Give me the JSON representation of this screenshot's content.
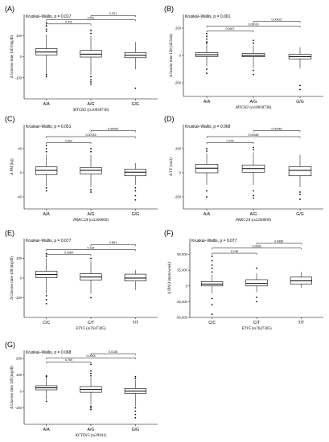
{
  "chart_data": [
    {
      "panel": "(A)",
      "type": "box",
      "test": "Kruskal–Wallis, p = 0.017",
      "ylabel": "Δ Glucose time 120 (mg/dl)",
      "gene": "MTCH2",
      "snp": " (rs10838738)",
      "categories": [
        "A/A",
        "A/G",
        "G/G"
      ],
      "ylim": [
        -200,
        200
      ],
      "yticks": [
        -100,
        0,
        100
      ],
      "boxes": [
        {
          "min": -80,
          "q1": 8,
          "med": 22,
          "q3": 38,
          "max": 105,
          "outliers": [
            120,
            130,
            145,
            160,
            -85,
            -95
          ]
        },
        {
          "min": -85,
          "q1": -2,
          "med": 12,
          "q3": 30,
          "max": 98,
          "outliers": [
            110,
            125,
            -95,
            -110,
            -120,
            -130
          ]
        },
        {
          "min": -60,
          "q1": -5,
          "med": 6,
          "q3": 20,
          "max": 70,
          "outliers": [
            -150
          ]
        }
      ],
      "comparisons": [
        {
          "a": 0,
          "b": 1,
          "p": "0.011",
          "y": 155
        },
        {
          "a": 0,
          "b": 2,
          "p": "0.011",
          "y": 175
        },
        {
          "a": 1,
          "b": 2,
          "p": "0.301",
          "y": 195
        }
      ]
    },
    {
      "panel": "(B)",
      "type": "box",
      "test": "Kruskal–Wallis, p = 0.001",
      "ylabel": "Δ Insulin time 120 (uUI/ml)",
      "gene": "MTCH2",
      "snp": " (rs10838738)",
      "categories": [
        "A/A",
        "A/G",
        "G/G"
      ],
      "ylim": [
        -300,
        300
      ],
      "yticks": [
        -200,
        0,
        200
      ],
      "boxes": [
        {
          "min": -80,
          "q1": -8,
          "med": 5,
          "q3": 20,
          "max": 80,
          "outliers": [
            90,
            100,
            120,
            140,
            160,
            -100,
            -130
          ]
        },
        {
          "min": -90,
          "q1": -10,
          "med": 0,
          "q3": 15,
          "max": 75,
          "outliers": [
            90,
            110,
            -110,
            -140
          ]
        },
        {
          "min": -95,
          "q1": -25,
          "med": -8,
          "q3": 8,
          "max": 60,
          "outliers": [
            -220,
            -250
          ]
        }
      ],
      "comparisons": [
        {
          "a": 0,
          "b": 1,
          "p": "0.0607",
          "y": 180
        },
        {
          "a": 0,
          "b": 2,
          "p": "0.00019",
          "y": 215
        },
        {
          "a": 1,
          "b": 2,
          "p": "0.00432",
          "y": 250
        }
      ]
    },
    {
      "panel": "(C)",
      "type": "box",
      "test": "Kruskal–Wallis, p = 0.051",
      "ylabel": "Δ FM (kg)",
      "gene": "PRKC2A",
      "snp": " (rs2260000)",
      "categories": [
        "A/A",
        "A/G",
        "G/G"
      ],
      "ylim": [
        -60,
        80
      ],
      "yticks": [
        -40,
        0,
        40
      ],
      "boxes": [
        {
          "min": -22,
          "q1": -3,
          "med": 4,
          "q3": 10,
          "max": 30,
          "outliers": [
            35,
            40,
            45,
            -25,
            -30
          ]
        },
        {
          "min": -24,
          "q1": -2,
          "med": 4,
          "q3": 9,
          "max": 30,
          "outliers": [
            35,
            40,
            -28,
            -32
          ]
        },
        {
          "min": -20,
          "q1": -5,
          "med": 1,
          "q3": 6,
          "max": 16,
          "outliers": [
            -25,
            -30,
            -38,
            -45
          ]
        }
      ],
      "comparisons": [
        {
          "a": 0,
          "b": 1,
          "p": "0.802",
          "y": 50
        },
        {
          "a": 0,
          "b": 2,
          "p": "0.00745",
          "y": 60
        },
        {
          "a": 1,
          "b": 2,
          "p": "0.00000",
          "y": 70
        }
      ]
    },
    {
      "panel": "(D)",
      "type": "box",
      "test": "Kruskal–Wallis, p = 0.068",
      "ylabel": "Δ VF (cm3)",
      "gene": "PRKC2A",
      "snp": " (rs2260000)",
      "categories": [
        "A/A",
        "A/G",
        "G/G"
      ],
      "ylim": [
        -300,
        400
      ],
      "yticks": [
        -200,
        0,
        200
      ],
      "boxes": [
        {
          "min": -100,
          "q1": 0,
          "med": 38,
          "q3": 70,
          "max": 160,
          "outliers": [
            180,
            200,
            -150,
            -200
          ]
        },
        {
          "min": -100,
          "q1": 5,
          "med": 35,
          "q3": 65,
          "max": 170,
          "outliers": [
            190,
            210,
            -150,
            -190,
            -210
          ]
        },
        {
          "min": -120,
          "q1": -25,
          "med": 20,
          "q3": 50,
          "max": 150,
          "outliers": [
            -160,
            -180,
            -220
          ]
        }
      ],
      "comparisons": [
        {
          "a": 0,
          "b": 1,
          "p": "0.978",
          "y": 250
        },
        {
          "a": 0,
          "b": 2,
          "p": "0.00346",
          "y": 300
        },
        {
          "a": 1,
          "b": 2,
          "p": "0.00346",
          "y": 350
        }
      ]
    },
    {
      "panel": "(E)",
      "type": "box",
      "test": "Kruskal–Wallis, p = 0.077",
      "ylabel": "Δ Glucose time 120 (mg/dl)",
      "gene": "ETV5",
      "snp": " (rs7647305)",
      "categories": [
        "C/C",
        "C/T",
        "T/T"
      ],
      "ylim": [
        -200,
        200
      ],
      "yticks": [
        -100,
        0,
        100
      ],
      "boxes": [
        {
          "min": -80,
          "q1": 2,
          "med": 18,
          "q3": 35,
          "max": 100,
          "outliers": [
            110,
            125,
            -90,
            -110,
            -130
          ]
        },
        {
          "min": -80,
          "q1": -10,
          "med": 5,
          "q3": 22,
          "max": 90,
          "outliers": [
            100,
            -100
          ]
        },
        {
          "min": -60,
          "q1": -15,
          "med": 0,
          "q3": 20,
          "max": 40,
          "outliers": []
        }
      ],
      "comparisons": [
        {
          "a": 0,
          "b": 1,
          "p": "0.0384",
          "y": 120
        },
        {
          "a": 0,
          "b": 2,
          "p": "0.182",
          "y": 145
        },
        {
          "a": 1,
          "b": 2,
          "p": "0.851",
          "y": 170
        }
      ]
    },
    {
      "panel": "(F)",
      "type": "box",
      "test": "Kruskal–Wallis, p = 0.077",
      "ylabel": "Δ IPAQ (mets/week)",
      "gene": "ETV5",
      "snp": " (rs7647305)",
      "categories": [
        "C/C",
        "C/T",
        "T/T"
      ],
      "ylim": [
        -50000,
        75000
      ],
      "yticks": [
        -50000,
        -25000,
        0,
        25000,
        50000
      ],
      "ytick_labels": [
        "-50,000",
        "-25,000",
        "0",
        "25,000",
        "50,000"
      ],
      "boxes": [
        {
          "min": -12000,
          "q1": 0,
          "med": 3000,
          "q3": 7000,
          "max": 18000,
          "outliers": [
            22000,
            28000,
            33000,
            40000,
            47000,
            -20000,
            -30000,
            -45000
          ]
        },
        {
          "min": -10000,
          "q1": 0,
          "med": 4000,
          "q3": 10000,
          "max": 20000,
          "outliers": [
            28000,
            -18000,
            -25000
          ]
        },
        {
          "min": -3000,
          "q1": 3000,
          "med": 8000,
          "q3": 14000,
          "max": 22000,
          "outliers": []
        }
      ],
      "comparisons": [
        {
          "a": 0,
          "b": 1,
          "p": "0.148",
          "y": 52000
        },
        {
          "a": 0,
          "b": 2,
          "p": "0.0296",
          "y": 60000
        },
        {
          "a": 1,
          "b": 2,
          "p": "0.0885",
          "y": 68000
        }
      ]
    },
    {
      "panel": "(G)",
      "type": "box",
      "test": "Kruskal–Wallis, p = 0.068",
      "ylabel": "Δ Glucose time 120 (mg/dl)",
      "gene": "KCTD15",
      "snp": " (rs29941)",
      "categories": [
        "A/A",
        "A/G",
        "G/G"
      ],
      "ylim": [
        -200,
        250
      ],
      "yticks": [
        -100,
        0,
        100,
        200
      ],
      "boxes": [
        {
          "min": -50,
          "q1": 10,
          "med": 22,
          "q3": 35,
          "max": 85,
          "outliers": [
            90,
            95,
            -60
          ]
        },
        {
          "min": -80,
          "q1": -5,
          "med": 12,
          "q3": 30,
          "max": 85,
          "outliers": [
            95,
            110,
            125,
            165,
            -90,
            -100,
            -110
          ]
        },
        {
          "min": -90,
          "q1": -12,
          "med": 2,
          "q3": 18,
          "max": 70,
          "outliers": [
            80,
            90,
            -100,
            -120,
            -140,
            -160
          ]
        }
      ],
      "comparisons": [
        {
          "a": 0,
          "b": 1,
          "p": "0.769",
          "y": 180
        },
        {
          "a": 0,
          "b": 2,
          "p": "0.0918",
          "y": 205
        },
        {
          "a": 1,
          "b": 2,
          "p": "0.0136",
          "y": 230
        }
      ]
    }
  ]
}
